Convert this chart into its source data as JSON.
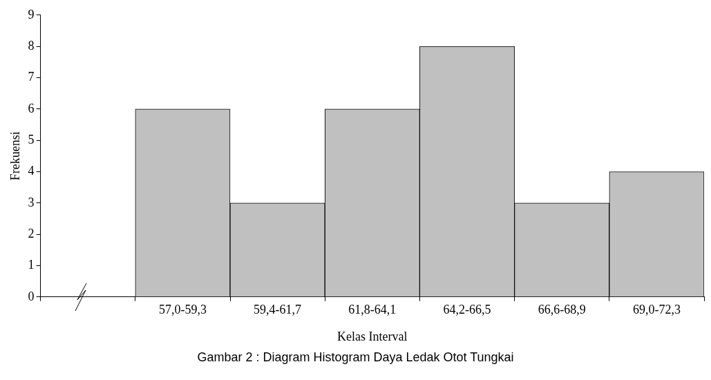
{
  "chart_data": {
    "type": "bar",
    "xlabel": "Kelas Interval",
    "ylabel": "Frekuensi",
    "categories": [
      null,
      "57,0-59,3",
      "59,4-61,7",
      "61,8-64,1",
      "64,2-66,5",
      "66,6-68,9",
      "69,0-72,3"
    ],
    "values": [
      null,
      6,
      3,
      6,
      8,
      3,
      4
    ],
    "color": "#c0c0c0",
    "ylim": [
      0,
      9
    ],
    "yticks": [
      0,
      1,
      2,
      3,
      4,
      5,
      6,
      7,
      8,
      9
    ],
    "grid": false,
    "legend": false,
    "annotations": [
      "Gambar 2 : Diagram Histogram Daya Ledak Otot Tungkai"
    ]
  }
}
